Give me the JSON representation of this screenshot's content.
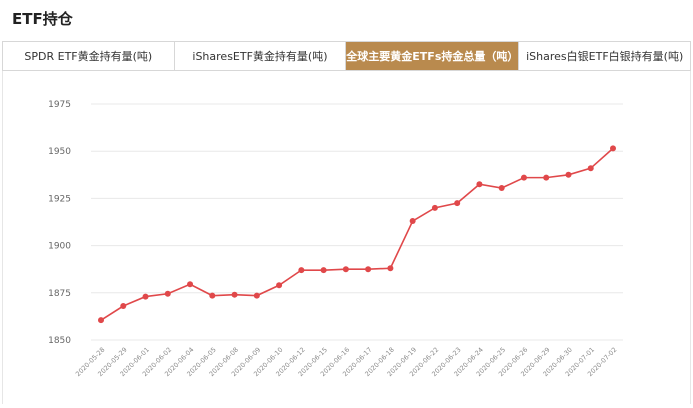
{
  "page": {
    "title": "ETF持仓"
  },
  "tabs": [
    {
      "label": "SPDR ETF黄金持有量(吨)",
      "active": false
    },
    {
      "label": "iSharesETF黄金持有量(吨)",
      "active": false
    },
    {
      "label": "全球主要黄金ETFs持金总量（吨）",
      "active": true
    },
    {
      "label": "iShares白银ETF白银持有量(吨)",
      "active": false
    }
  ],
  "colors": {
    "accent": "#b98a4e",
    "series": "#e0484a",
    "grid": "#e8e8e8",
    "axis_text": "#666666"
  },
  "chart_data": {
    "type": "line",
    "title": "",
    "xlabel": "",
    "ylabel": "",
    "ylim": [
      1850,
      1975
    ],
    "yticks": [
      1850,
      1875,
      1900,
      1925,
      1950,
      1975
    ],
    "grid": true,
    "x": [
      "2020-05-28",
      "2020-05-29",
      "2020-06-01",
      "2020-06-02",
      "2020-06-04",
      "2020-06-05",
      "2020-06-08",
      "2020-06-09",
      "2020-06-10",
      "2020-06-12",
      "2020-06-15",
      "2020-06-16",
      "2020-06-17",
      "2020-06-18",
      "2020-06-19",
      "2020-06-22",
      "2020-06-23",
      "2020-06-24",
      "2020-06-25",
      "2020-06-26",
      "2020-06-29",
      "2020-06-30",
      "2020-07-01",
      "2020-07-02"
    ],
    "series": [
      {
        "values": [
          1860.5,
          1868,
          1873,
          1874.5,
          1879.5,
          1873.5,
          1874,
          1873.5,
          1879,
          1887,
          1887,
          1887.5,
          1887.5,
          1888,
          1913,
          1920,
          1922.5,
          1932.5,
          1930.5,
          1936,
          1936,
          1937.5,
          1941,
          1951.5
        ]
      }
    ]
  }
}
